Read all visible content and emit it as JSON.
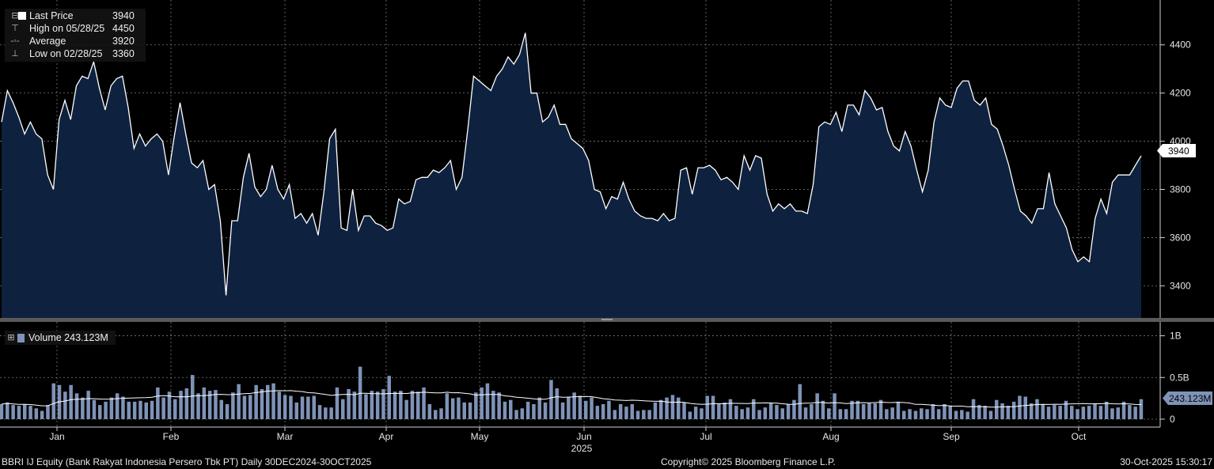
{
  "legend": {
    "last_price_label": "Last Price",
    "last_price_value": "3940",
    "high_label": "High on 05/28/25",
    "high_value": "4450",
    "average_label": "Average",
    "average_value": "3920",
    "low_label": "Low on 02/28/25",
    "low_value": "3360",
    "volume_label": "Volume 243.123M"
  },
  "footer": {
    "security": "BBRI IJ Equity (Bank Rakyat Indonesia Persero Tbk PT) Daily 30DEC2024-30OCT2025",
    "copyright": "Copyright© 2025 Bloomberg Finance L.P.",
    "timestamp": "30-Oct-2025 15:30:17"
  },
  "colors": {
    "background": "#000000",
    "area_fill": "#0e2240",
    "line": "#ffffff",
    "volume_bar": "#7f93b8",
    "grid": "#7a7a7a"
  },
  "chart_data": [
    {
      "type": "area",
      "series_name": "Last Price",
      "ylim": [
        3260,
        4560
      ],
      "y_ticks": [
        "3400",
        "3600",
        "3800",
        "4000",
        "4200",
        "4400"
      ],
      "y_tick_values": [
        3400,
        3600,
        3800,
        4000,
        4200,
        4400
      ],
      "last_value_label": "3940",
      "x_tick_labels": [
        "Jan",
        "Feb",
        "Mar",
        "Apr",
        "May",
        "Jun",
        "Jul",
        "Aug",
        "Sep",
        "Oct"
      ],
      "x_year_label": "2025",
      "grid": true,
      "values": [
        4080,
        4210,
        4160,
        4100,
        4030,
        4080,
        4030,
        4010,
        3860,
        3800,
        4090,
        4170,
        4090,
        4230,
        4270,
        4260,
        4330,
        4220,
        4130,
        4230,
        4260,
        4270,
        4140,
        3970,
        4030,
        3980,
        4010,
        4030,
        4000,
        3860,
        4020,
        4160,
        4030,
        3910,
        3890,
        3920,
        3800,
        3820,
        3670,
        3360,
        3670,
        3670,
        3850,
        3950,
        3810,
        3770,
        3800,
        3900,
        3800,
        3760,
        3820,
        3680,
        3700,
        3660,
        3700,
        3610,
        3790,
        4010,
        4050,
        3640,
        3630,
        3800,
        3630,
        3690,
        3690,
        3660,
        3650,
        3630,
        3640,
        3760,
        3740,
        3750,
        3840,
        3850,
        3850,
        3880,
        3870,
        3890,
        3920,
        3800,
        3850,
        4050,
        4270,
        4250,
        4230,
        4210,
        4270,
        4300,
        4350,
        4320,
        4360,
        4450,
        4200,
        4200,
        4080,
        4100,
        4150,
        4070,
        4070,
        4010,
        3990,
        3970,
        3920,
        3800,
        3790,
        3720,
        3770,
        3760,
        3830,
        3760,
        3710,
        3690,
        3680,
        3680,
        3670,
        3700,
        3670,
        3680,
        3880,
        3890,
        3780,
        3890,
        3890,
        3900,
        3880,
        3840,
        3850,
        3830,
        3800,
        3940,
        3880,
        3940,
        3930,
        3780,
        3710,
        3740,
        3720,
        3740,
        3710,
        3710,
        3700,
        3820,
        4060,
        4080,
        4070,
        4120,
        4040,
        4150,
        4150,
        4110,
        4210,
        4180,
        4130,
        4140,
        4040,
        3980,
        3960,
        4040,
        3980,
        3880,
        3790,
        3880,
        4080,
        4180,
        4150,
        4140,
        4220,
        4250,
        4250,
        4170,
        4150,
        4180,
        4070,
        4050,
        3980,
        3900,
        3800,
        3710,
        3690,
        3660,
        3720,
        3720,
        3870,
        3740,
        3690,
        3640,
        3550,
        3500,
        3520,
        3500,
        3680,
        3760,
        3700,
        3830,
        3860,
        3860,
        3860,
        3900,
        3940
      ]
    },
    {
      "type": "bar",
      "series_name": "Volume",
      "ylim": [
        0,
        1.1
      ],
      "unit": "B",
      "y_ticks": [
        "0",
        "0.5B",
        "1B"
      ],
      "y_tick_values": [
        0,
        0.5,
        1.0
      ],
      "last_value_label": "243.123M",
      "grid": true,
      "values": [
        0.18,
        0.2,
        0.17,
        0.16,
        0.18,
        0.16,
        0.13,
        0.1,
        0.17,
        0.43,
        0.41,
        0.33,
        0.41,
        0.31,
        0.26,
        0.34,
        0.23,
        0.17,
        0.21,
        0.26,
        0.31,
        0.27,
        0.21,
        0.21,
        0.22,
        0.2,
        0.22,
        0.38,
        0.26,
        0.33,
        0.24,
        0.34,
        0.37,
        0.53,
        0.31,
        0.38,
        0.34,
        0.35,
        0.23,
        0.18,
        0.32,
        0.42,
        0.28,
        0.29,
        0.41,
        0.36,
        0.41,
        0.43,
        0.33,
        0.29,
        0.28,
        0.2,
        0.27,
        0.27,
        0.28,
        0.17,
        0.14,
        0.14,
        0.38,
        0.24,
        0.36,
        0.33,
        0.63,
        0.3,
        0.34,
        0.33,
        0.36,
        0.52,
        0.33,
        0.34,
        0.23,
        0.34,
        0.33,
        0.38,
        0.18,
        0.11,
        0.13,
        0.31,
        0.25,
        0.26,
        0.2,
        0.2,
        0.32,
        0.38,
        0.43,
        0.34,
        0.32,
        0.21,
        0.23,
        0.11,
        0.13,
        0.21,
        0.18,
        0.26,
        0.2,
        0.47,
        0.37,
        0.2,
        0.27,
        0.32,
        0.28,
        0.22,
        0.26,
        0.16,
        0.18,
        0.22,
        0.11,
        0.18,
        0.15,
        0.18,
        0.1,
        0.11,
        0.11,
        0.2,
        0.23,
        0.26,
        0.29,
        0.26,
        0.2,
        0.09,
        0.15,
        0.13,
        0.28,
        0.28,
        0.18,
        0.2,
        0.24,
        0.16,
        0.12,
        0.14,
        0.24,
        0.11,
        0.14,
        0.19,
        0.17,
        0.13,
        0.18,
        0.23,
        0.42,
        0.14,
        0.18,
        0.31,
        0.22,
        0.13,
        0.31,
        0.12,
        0.12,
        0.22,
        0.22,
        0.18,
        0.19,
        0.19,
        0.23,
        0.12,
        0.14,
        0.21,
        0.1,
        0.12,
        0.1,
        0.13,
        0.12,
        0.18,
        0.12,
        0.18,
        0.16,
        0.1,
        0.11,
        0.09,
        0.24,
        0.17,
        0.16,
        0.1,
        0.23,
        0.19,
        0.16,
        0.21,
        0.28,
        0.27,
        0.19,
        0.24,
        0.18,
        0.15,
        0.17,
        0.16,
        0.22,
        0.16,
        0.12,
        0.15,
        0.16,
        0.19,
        0.16,
        0.21,
        0.13,
        0.14,
        0.21,
        0.17,
        0.15,
        0.24
      ]
    }
  ]
}
